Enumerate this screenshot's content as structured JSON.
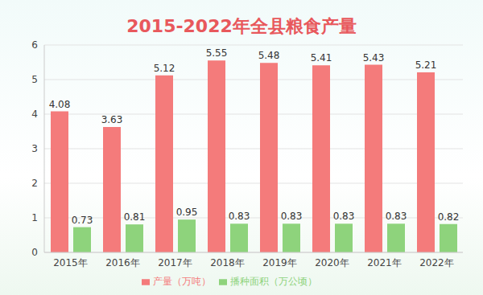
{
  "chart_data": {
    "type": "bar",
    "title": "2015-2022年全县粮食产量",
    "categories": [
      "2015年",
      "2016年",
      "2017年",
      "2018年",
      "2019年",
      "2020年",
      "2021年",
      "2022年"
    ],
    "series": [
      {
        "name": "产量（万吨）",
        "color": "#f47b7b",
        "values": [
          4.08,
          3.63,
          5.12,
          5.55,
          5.48,
          5.41,
          5.43,
          5.21
        ]
      },
      {
        "name": "播种面积（万公顷）",
        "color": "#8ed37c",
        "values": [
          0.73,
          0.81,
          0.95,
          0.83,
          0.83,
          0.83,
          0.83,
          0.82
        ]
      }
    ],
    "ylim": [
      0,
      6
    ],
    "yticks": [
      0,
      1,
      2,
      3,
      4,
      5,
      6
    ],
    "grid": true,
    "legend": "bottom",
    "data_labels": true
  }
}
